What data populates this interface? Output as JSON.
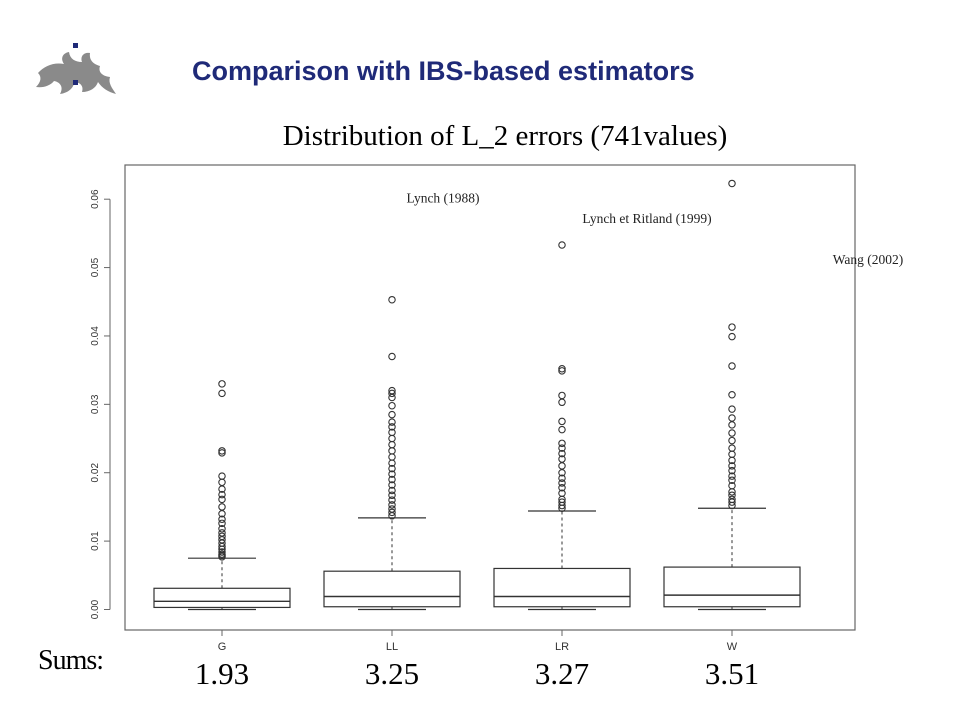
{
  "slide": {
    "title": "Comparison with IBS-based estimators",
    "colors": {
      "title": "#1f2a78",
      "logo": "#888888"
    }
  },
  "chart_data": {
    "type": "boxplot",
    "title": "Distribution of L_2 errors (741values)",
    "xlabel": "",
    "ylabel": "",
    "ylim": [
      -0.003,
      0.065
    ],
    "yticks": [
      0.0,
      0.01,
      0.02,
      0.03,
      0.04,
      0.05,
      0.06
    ],
    "ytick_labels": [
      "0.00",
      "0.01",
      "0.02",
      "0.03",
      "0.04",
      "0.05",
      "0.06"
    ],
    "grid": false,
    "categories": [
      "G",
      "LL",
      "LR",
      "W"
    ],
    "boxes": [
      {
        "category": "G",
        "whisker_low": 0.0,
        "q1": 0.0003,
        "median": 0.0012,
        "q3": 0.0031,
        "whisker_high": 0.0075,
        "outliers": [
          0.0077,
          0.0079,
          0.0081,
          0.0084,
          0.0088,
          0.0092,
          0.0097,
          0.0102,
          0.0107,
          0.0112,
          0.0118,
          0.0126,
          0.0132,
          0.014,
          0.015,
          0.0161,
          0.0168,
          0.0176,
          0.0186,
          0.0195,
          0.0229,
          0.0232,
          0.0316,
          0.033
        ]
      },
      {
        "category": "LL",
        "whisker_low": 0.0,
        "q1": 0.0004,
        "median": 0.0019,
        "q3": 0.0056,
        "whisker_high": 0.0134,
        "outliers": [
          0.0137,
          0.0142,
          0.0147,
          0.0153,
          0.016,
          0.0167,
          0.0174,
          0.0182,
          0.019,
          0.0198,
          0.0206,
          0.0214,
          0.0223,
          0.0232,
          0.0241,
          0.025,
          0.0259,
          0.0267,
          0.0274,
          0.0285,
          0.0298,
          0.031,
          0.0316,
          0.032,
          0.037,
          0.0453
        ]
      },
      {
        "category": "LR",
        "whisker_low": 0.0,
        "q1": 0.0004,
        "median": 0.0019,
        "q3": 0.006,
        "whisker_high": 0.0144,
        "outliers": [
          0.0148,
          0.0152,
          0.0157,
          0.0161,
          0.017,
          0.0178,
          0.0185,
          0.0192,
          0.02,
          0.021,
          0.022,
          0.0228,
          0.0236,
          0.0243,
          0.0263,
          0.0275,
          0.0303,
          0.0313,
          0.0349,
          0.0352,
          0.0533
        ]
      },
      {
        "category": "W",
        "whisker_low": 0.0,
        "q1": 0.0004,
        "median": 0.0021,
        "q3": 0.0062,
        "whisker_high": 0.0148,
        "outliers": [
          0.0152,
          0.0157,
          0.0161,
          0.0167,
          0.0172,
          0.0181,
          0.0189,
          0.0195,
          0.0203,
          0.021,
          0.0218,
          0.0227,
          0.0236,
          0.0247,
          0.0258,
          0.027,
          0.028,
          0.0293,
          0.0314,
          0.0356,
          0.0399,
          0.0413,
          0.0623
        ]
      }
    ],
    "annotations": [
      {
        "text": "Lynch (1988)",
        "x": 1.3,
        "y": 0.0595
      },
      {
        "text": "Lynch et Ritland (1999)",
        "x": 2.5,
        "y": 0.0565
      },
      {
        "text": "Wang (2002)",
        "x": 3.8,
        "y": 0.0505
      }
    ],
    "sums_label": "Sums:",
    "sums": [
      "1.93",
      "3.25",
      "3.27",
      "3.51"
    ]
  }
}
